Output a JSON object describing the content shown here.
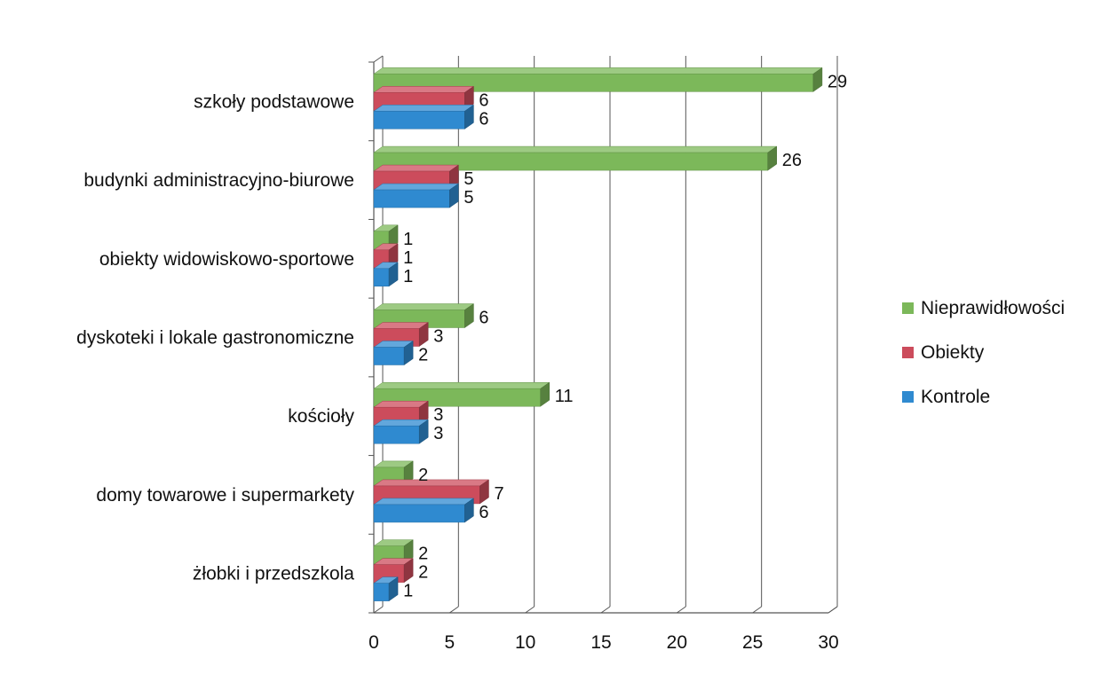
{
  "chart_data": {
    "type": "bar",
    "orientation": "horizontal",
    "categories": [
      "szkoły podstawowe",
      "budynki administracyjno-biurowe",
      "obiekty widowiskowo-sportowe",
      "dyskoteki i lokale gastronomiczne",
      "kościoły",
      "domy towarowe i supermarkety",
      "żłobki i przedszkola"
    ],
    "series": [
      {
        "name": "Nieprawidłowości",
        "color": "#7cb85a",
        "values": [
          29,
          26,
          1,
          6,
          11,
          2,
          2
        ]
      },
      {
        "name": "Obiekty",
        "color": "#cc4c5c",
        "values": [
          6,
          5,
          1,
          3,
          3,
          7,
          2
        ]
      },
      {
        "name": "Kontrole",
        "color": "#2f8ad0",
        "values": [
          6,
          5,
          1,
          2,
          3,
          6,
          1
        ]
      }
    ],
    "xlim": [
      0,
      30
    ],
    "xticks": [
      "0",
      "5",
      "10",
      "15",
      "20",
      "25",
      "30"
    ],
    "grid": true,
    "legend_position": "right",
    "style": "3d"
  }
}
